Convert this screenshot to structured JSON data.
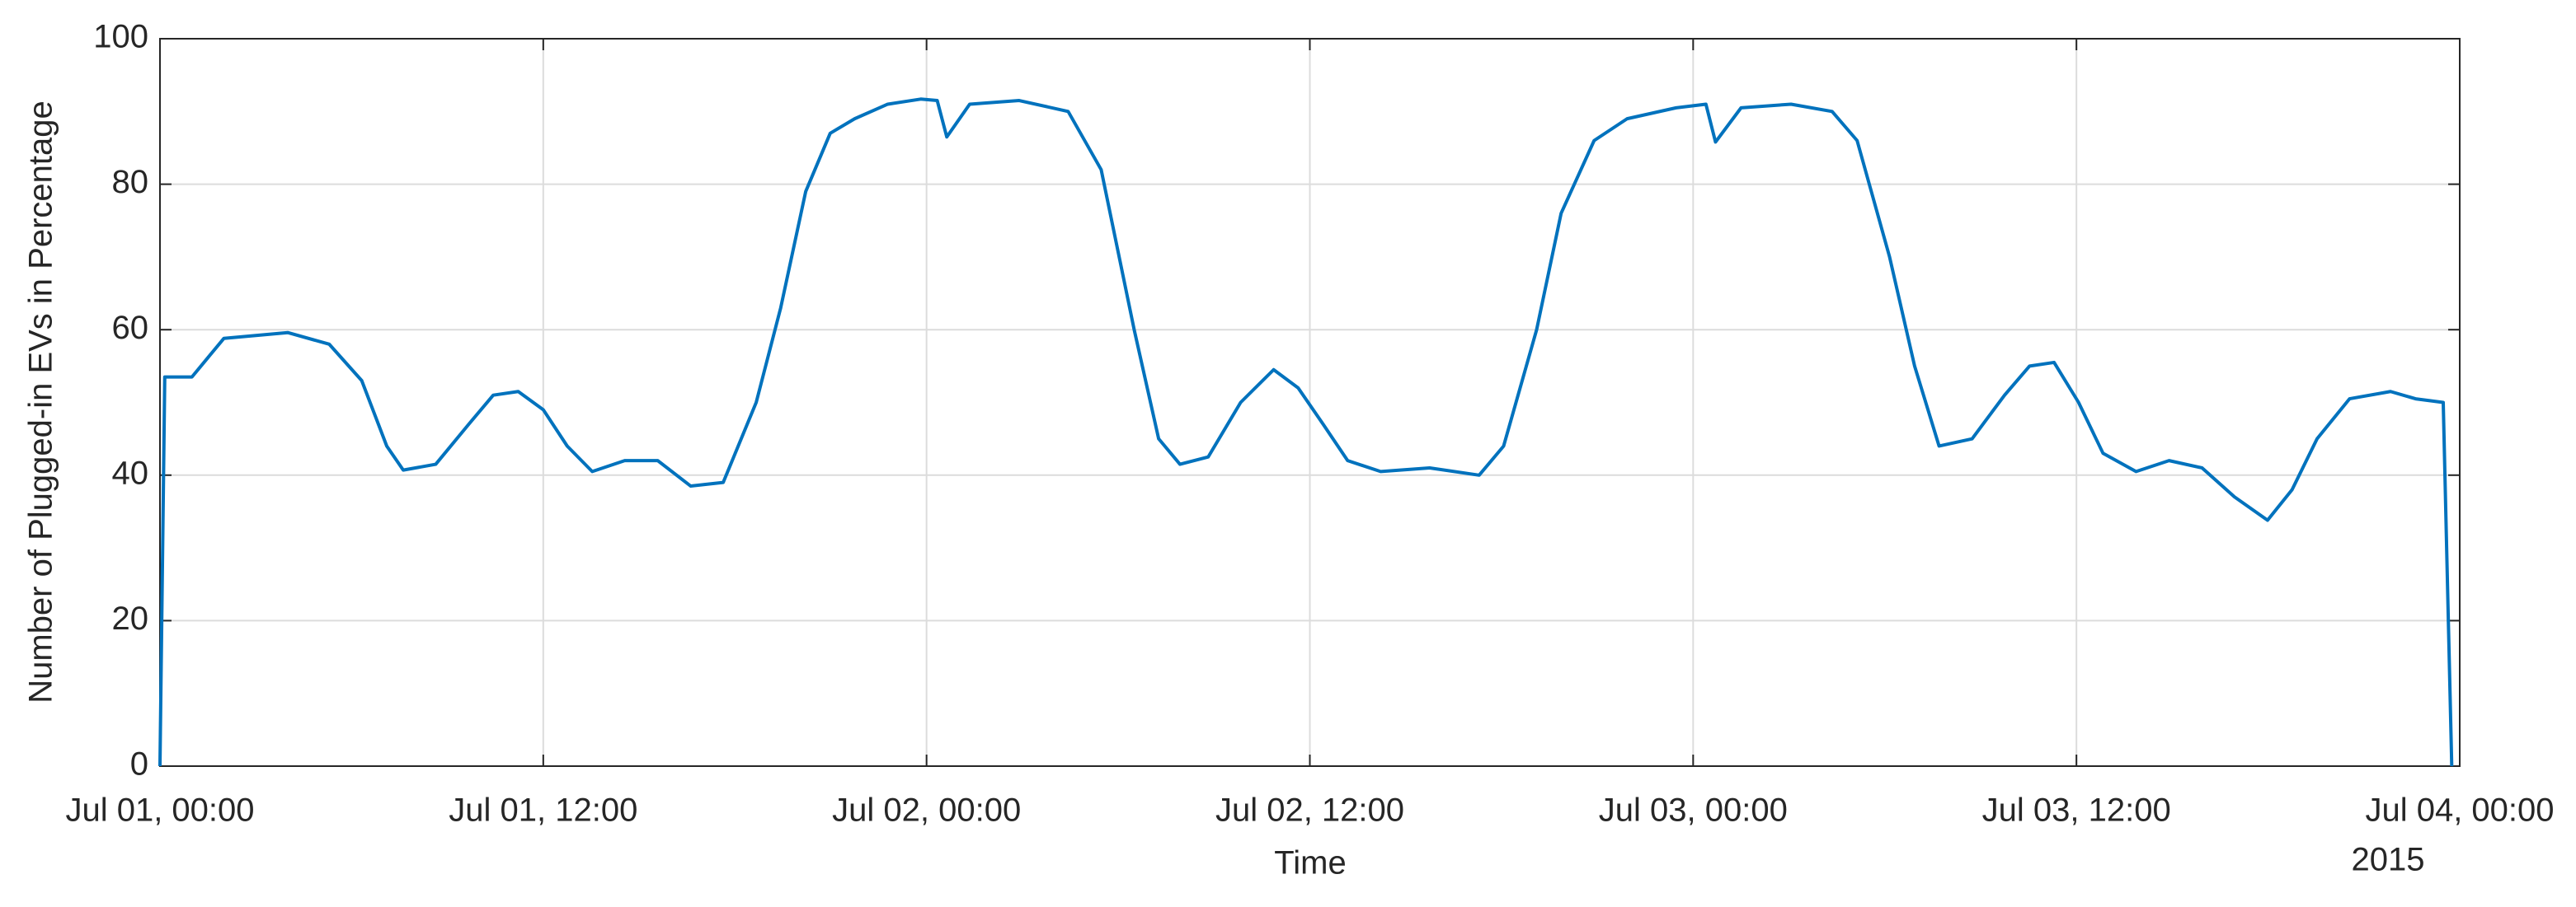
{
  "chart_data": {
    "type": "line",
    "xlabel": "Time",
    "ylabel": "Number of Plugged-in EVs in Percentage",
    "x_secondary_label": "2015",
    "xlim": [
      "2015-07-01 00:00",
      "2015-07-04 00:00"
    ],
    "xticks": [
      {
        "value": "2015-07-01 00:00",
        "label": "Jul 01, 00:00"
      },
      {
        "value": "2015-07-01 12:00",
        "label": "Jul 01, 12:00"
      },
      {
        "value": "2015-07-02 00:00",
        "label": "Jul 02, 00:00"
      },
      {
        "value": "2015-07-02 12:00",
        "label": "Jul 02, 12:00"
      },
      {
        "value": "2015-07-03 00:00",
        "label": "Jul 03, 00:00"
      },
      {
        "value": "2015-07-03 12:00",
        "label": "Jul 03, 12:00"
      },
      {
        "value": "2015-07-04 00:00",
        "label": "Jul 04, 00:00"
      }
    ],
    "ylim": [
      0,
      100
    ],
    "yticks": [
      0,
      20,
      40,
      60,
      80,
      100
    ],
    "grid": true,
    "color": "#0072bd",
    "x": [
      "2015-07-01 00:00",
      "2015-07-01 00:09",
      "2015-07-01 01:00",
      "2015-07-01 02:00",
      "2015-07-01 03:00",
      "2015-07-01 04:00",
      "2015-07-01 05:18",
      "2015-07-01 06:19",
      "2015-07-01 07:06",
      "2015-07-01 07:37",
      "2015-07-01 08:38",
      "2015-07-01 09:40",
      "2015-07-01 10:26",
      "2015-07-01 11:13",
      "2015-07-01 12:00",
      "2015-07-01 12:45",
      "2015-07-01 13:32",
      "2015-07-01 14:33",
      "2015-07-01 15:35",
      "2015-07-01 16:37",
      "2015-07-01 17:38",
      "2015-07-01 18:40",
      "2015-07-01 19:26",
      "2015-07-01 20:13",
      "2015-07-01 20:59",
      "2015-07-01 21:45",
      "2015-07-01 22:47",
      "2015-07-01 23:49",
      "2015-07-02 00:20",
      "2015-07-02 00:38",
      "2015-07-02 01:21",
      "2015-07-02 02:54",
      "2015-07-02 04:26",
      "2015-07-02 05:28",
      "2015-07-02 06:30",
      "2015-07-02 07:16",
      "2015-07-02 07:56",
      "2015-07-02 08:49",
      "2015-07-02 09:50",
      "2015-07-02 10:52",
      "2015-07-02 11:38",
      "2015-07-02 12:25",
      "2015-07-02 13:11",
      "2015-07-02 14:13",
      "2015-07-02 15:45",
      "2015-07-02 17:18",
      "2015-07-02 18:04",
      "2015-07-02 19:06",
      "2015-07-02 19:52",
      "2015-07-02 20:54",
      "2015-07-02 21:56",
      "2015-07-02 23:28",
      "2015-07-03 00:24",
      "2015-07-03 00:42",
      "2015-07-03 01:30",
      "2015-07-03 03:04",
      "2015-07-03 04:21",
      "2015-07-03 05:08",
      "2015-07-03 06:09",
      "2015-07-03 06:56",
      "2015-07-03 07:42",
      "2015-07-03 08:44",
      "2015-07-03 09:45",
      "2015-07-03 10:32",
      "2015-07-03 11:18",
      "2015-07-03 12:04",
      "2015-07-03 12:50",
      "2015-07-03 13:52",
      "2015-07-03 14:54",
      "2015-07-03 15:56",
      "2015-07-03 16:57",
      "2015-07-03 17:59",
      "2015-07-03 18:45",
      "2015-07-03 19:32",
      "2015-07-03 20:33",
      "2015-07-03 21:50",
      "2015-07-03 22:37",
      "2015-07-03 23:29",
      "2015-07-03 23:45"
    ],
    "values": [
      0,
      53.5,
      53.5,
      58.8,
      59.2,
      59.6,
      58,
      53,
      44,
      40.7,
      41.5,
      47,
      51,
      51.5,
      49,
      44,
      40.5,
      42,
      42,
      38.5,
      39,
      50,
      63,
      79,
      87,
      89,
      91,
      91.7,
      91.5,
      86.5,
      91,
      91.5,
      90,
      82,
      60,
      45,
      41.5,
      42.5,
      50,
      54.5,
      52,
      47,
      42,
      40.5,
      41,
      40,
      44,
      60,
      76,
      86,
      89,
      90.5,
      91,
      85.8,
      90.5,
      91,
      90,
      86,
      70,
      55,
      44,
      45,
      51,
      55,
      55.5,
      50,
      43,
      40.5,
      42,
      41,
      37,
      33.8,
      38,
      45,
      50.5,
      51.5,
      50.5,
      50,
      0
    ]
  }
}
